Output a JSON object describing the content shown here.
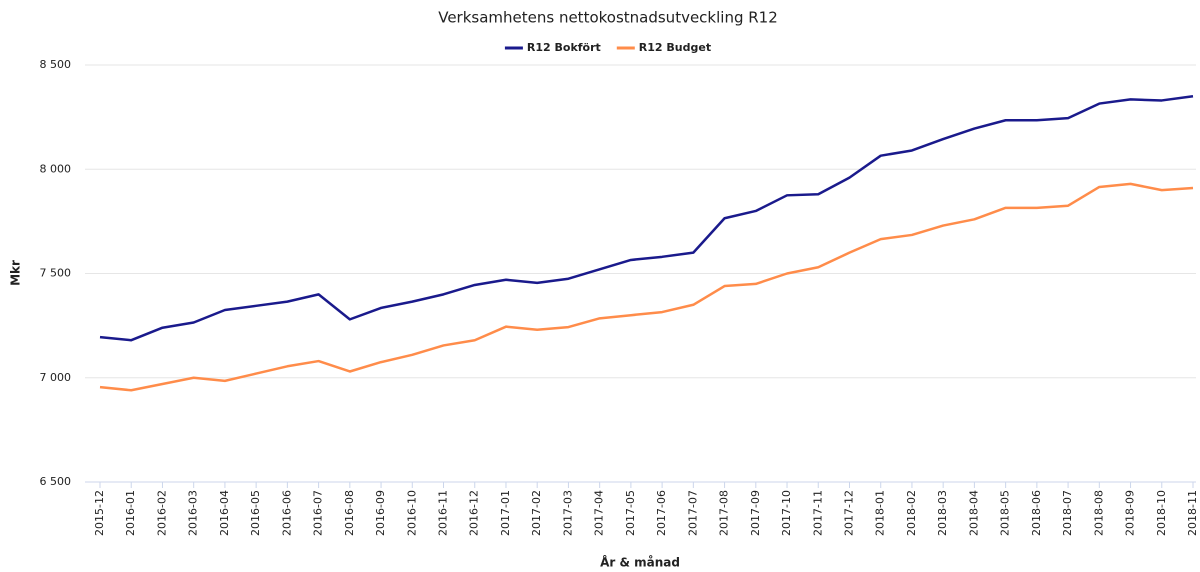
{
  "chart_data": {
    "type": "line",
    "title": "Verksamhetens nettokostnadsutveckling R12",
    "y_label": "Mkr",
    "x_label": "År & månad",
    "categories": [
      "2015-12",
      "2016-01",
      "2016-02",
      "2016-03",
      "2016-04",
      "2016-05",
      "2016-06",
      "2016-07",
      "2016-08",
      "2016-09",
      "2016-10",
      "2016-11",
      "2016-12",
      "2017-01",
      "2017-02",
      "2017-03",
      "2017-04",
      "2017-05",
      "2017-06",
      "2017-07",
      "2017-08",
      "2017-09",
      "2017-10",
      "2017-11",
      "2017-12",
      "2018-01",
      "2018-02",
      "2018-03",
      "2018-04",
      "2018-05",
      "2018-06",
      "2018-07",
      "2018-08",
      "2018-09",
      "2018-10",
      "2018-11"
    ],
    "series": [
      {
        "name": "R12 Bokfört",
        "color": "#1a1a8c",
        "values": [
          7195,
          7180,
          7240,
          7265,
          7325,
          7345,
          7365,
          7400,
          7280,
          7335,
          7365,
          7400,
          7445,
          7470,
          7455,
          7475,
          7520,
          7565,
          7580,
          7600,
          7765,
          7800,
          7875,
          7880,
          7960,
          8065,
          8090,
          8145,
          8195,
          8235,
          8235,
          8245,
          8315,
          8335,
          8330,
          8350
        ]
      },
      {
        "name": "R12 Budget",
        "color": "#ff8c4a",
        "values": [
          6955,
          6940,
          6970,
          7000,
          6985,
          7020,
          7055,
          7080,
          7030,
          7075,
          7110,
          7155,
          7180,
          7245,
          7230,
          7243,
          7285,
          7300,
          7315,
          7350,
          7440,
          7450,
          7500,
          7530,
          7600,
          7665,
          7685,
          7730,
          7760,
          7815,
          7815,
          7825,
          7915,
          7930,
          7900,
          7910
        ]
      }
    ],
    "ylim": [
      6500,
      8500
    ],
    "yticks": [
      {
        "value": 6500,
        "label": "6 500"
      },
      {
        "value": 7000,
        "label": "7 000"
      },
      {
        "value": 7500,
        "label": "7 500"
      },
      {
        "value": 8000,
        "label": "8 000"
      },
      {
        "value": 8500,
        "label": "8 500"
      }
    ],
    "grid": true,
    "legend": "top"
  }
}
